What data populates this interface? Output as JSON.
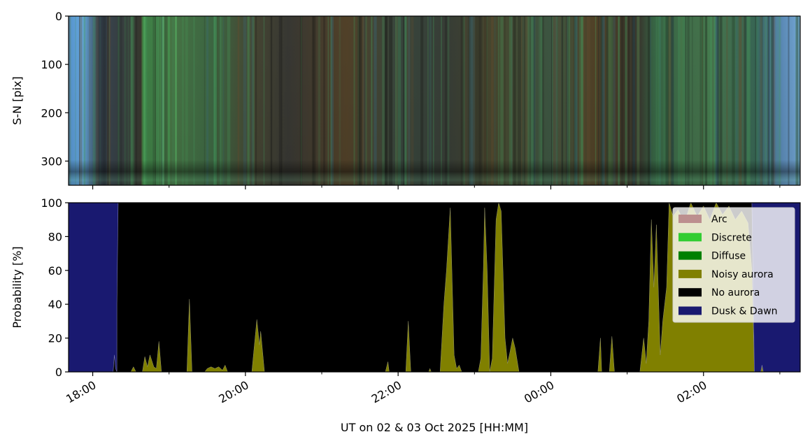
{
  "chart_data": [
    {
      "type": "heatmap",
      "description_kind": "keogram",
      "ylabel": "S-N [pix]",
      "ylim": [
        350,
        0
      ],
      "yticks": [
        "0",
        "100",
        "200",
        "300"
      ],
      "xlim": [
        "17:41",
        "03:16"
      ],
      "xticks": [
        "18:00",
        "20:00",
        "22:00",
        "00:00",
        "02:00"
      ],
      "x_minor_ticks": [
        "19:00",
        "21:00",
        "23:00",
        "01:00",
        "03:00"
      ]
    },
    {
      "type": "area",
      "stacked": true,
      "ylabel": "Probability [%]",
      "xlabel": "UT on 02 & 03 Oct 2025 [HH:MM]",
      "ylim": [
        0,
        100
      ],
      "yticks": [
        "0",
        "20",
        "40",
        "60",
        "80",
        "100"
      ],
      "xlim": [
        "17:41",
        "03:16"
      ],
      "xticks": [
        "18:00",
        "20:00",
        "22:00",
        "00:00",
        "02:00"
      ],
      "x_minor_ticks": [
        "19:00",
        "21:00",
        "23:00",
        "01:00",
        "03:00"
      ],
      "grid": false,
      "legend_placement": "upper-right",
      "legend": [
        {
          "name": "Arc",
          "color": "#bc8f8f"
        },
        {
          "name": "Discrete",
          "color": "#32cd32"
        },
        {
          "name": "Diffuse",
          "color": "#008000"
        },
        {
          "name": "Noisy aurora",
          "color": "#808000"
        },
        {
          "name": "No aurora",
          "color": "#000000"
        },
        {
          "name": "Dusk & Dawn",
          "color": "#191970"
        }
      ],
      "series": [
        {
          "name": "Noisy aurora",
          "color": "#808000",
          "points": [
            [
              "17:41",
              0
            ],
            [
              "18:30",
              0
            ],
            [
              "18:32",
              3
            ],
            [
              "18:34",
              0
            ],
            [
              "18:39",
              0
            ],
            [
              "18:41",
              9
            ],
            [
              "18:43",
              3
            ],
            [
              "18:45",
              10
            ],
            [
              "18:48",
              3
            ],
            [
              "18:50",
              2
            ],
            [
              "18:52",
              18
            ],
            [
              "18:54",
              0
            ],
            [
              "19:14",
              0
            ],
            [
              "19:16",
              43
            ],
            [
              "19:18",
              0
            ],
            [
              "19:28",
              0
            ],
            [
              "19:30",
              2
            ],
            [
              "19:33",
              3
            ],
            [
              "19:36",
              2
            ],
            [
              "19:39",
              3
            ],
            [
              "19:42",
              1
            ],
            [
              "19:44",
              4
            ],
            [
              "19:46",
              0
            ],
            [
              "20:05",
              0
            ],
            [
              "20:09",
              31
            ],
            [
              "20:11",
              16
            ],
            [
              "20:12",
              24
            ],
            [
              "20:15",
              0
            ],
            [
              "21:50",
              0
            ],
            [
              "21:52",
              6
            ],
            [
              "21:53",
              0
            ],
            [
              "22:06",
              0
            ],
            [
              "22:08",
              30
            ],
            [
              "22:10",
              0
            ],
            [
              "22:24",
              0
            ],
            [
              "22:25",
              2
            ],
            [
              "22:26",
              0
            ],
            [
              "22:33",
              0
            ],
            [
              "22:36",
              40
            ],
            [
              "22:38",
              60
            ],
            [
              "22:41",
              97
            ],
            [
              "22:44",
              10
            ],
            [
              "22:46",
              2
            ],
            [
              "22:48",
              4
            ],
            [
              "22:50",
              0
            ],
            [
              "23:03",
              0
            ],
            [
              "23:05",
              8
            ],
            [
              "23:07",
              60
            ],
            [
              "23:08",
              97
            ],
            [
              "23:10",
              60
            ],
            [
              "23:12",
              0
            ],
            [
              "23:14",
              8
            ],
            [
              "23:17",
              90
            ],
            [
              "23:19",
              100
            ],
            [
              "23:21",
              95
            ],
            [
              "23:24",
              20
            ],
            [
              "23:26",
              5
            ],
            [
              "23:28",
              12
            ],
            [
              "23:30",
              20
            ],
            [
              "23:32",
              14
            ],
            [
              "23:35",
              0
            ],
            [
              "00:37",
              0
            ],
            [
              "00:39",
              20
            ],
            [
              "00:40",
              0
            ],
            [
              "00:46",
              0
            ],
            [
              "00:48",
              21
            ],
            [
              "00:50",
              0
            ],
            [
              "01:10",
              0
            ],
            [
              "01:13",
              20
            ],
            [
              "01:15",
              5
            ],
            [
              "01:17",
              30
            ],
            [
              "01:19",
              90
            ],
            [
              "01:21",
              50
            ],
            [
              "01:23",
              87
            ],
            [
              "01:26",
              10
            ],
            [
              "01:28",
              30
            ],
            [
              "01:31",
              50
            ],
            [
              "01:33",
              100
            ],
            [
              "01:36",
              92
            ],
            [
              "01:40",
              96
            ],
            [
              "01:45",
              88
            ],
            [
              "01:50",
              100
            ],
            [
              "01:55",
              92
            ],
            [
              "02:00",
              98
            ],
            [
              "02:05",
              90
            ],
            [
              "02:10",
              100
            ],
            [
              "02:15",
              93
            ],
            [
              "02:20",
              98
            ],
            [
              "02:25",
              90
            ],
            [
              "02:30",
              95
            ],
            [
              "02:35",
              88
            ],
            [
              "02:38",
              60
            ],
            [
              "02:40",
              0
            ],
            [
              "02:45",
              0
            ],
            [
              "02:46",
              4
            ],
            [
              "02:47",
              0
            ],
            [
              "03:16",
              0
            ]
          ]
        },
        {
          "name": "Dusk & Dawn",
          "color": "#191970",
          "points": [
            [
              "17:41",
              100
            ],
            [
              "18:16",
              100
            ],
            [
              "18:17",
              90
            ],
            [
              "18:18",
              98
            ],
            [
              "18:19",
              100
            ],
            [
              "18:19",
              60
            ],
            [
              "18:20",
              0
            ],
            [
              "02:38",
              0
            ],
            [
              "02:40",
              100
            ],
            [
              "02:45",
              100
            ],
            [
              "02:46",
              96
            ],
            [
              "02:47",
              100
            ],
            [
              "03:16",
              100
            ]
          ]
        }
      ]
    }
  ]
}
